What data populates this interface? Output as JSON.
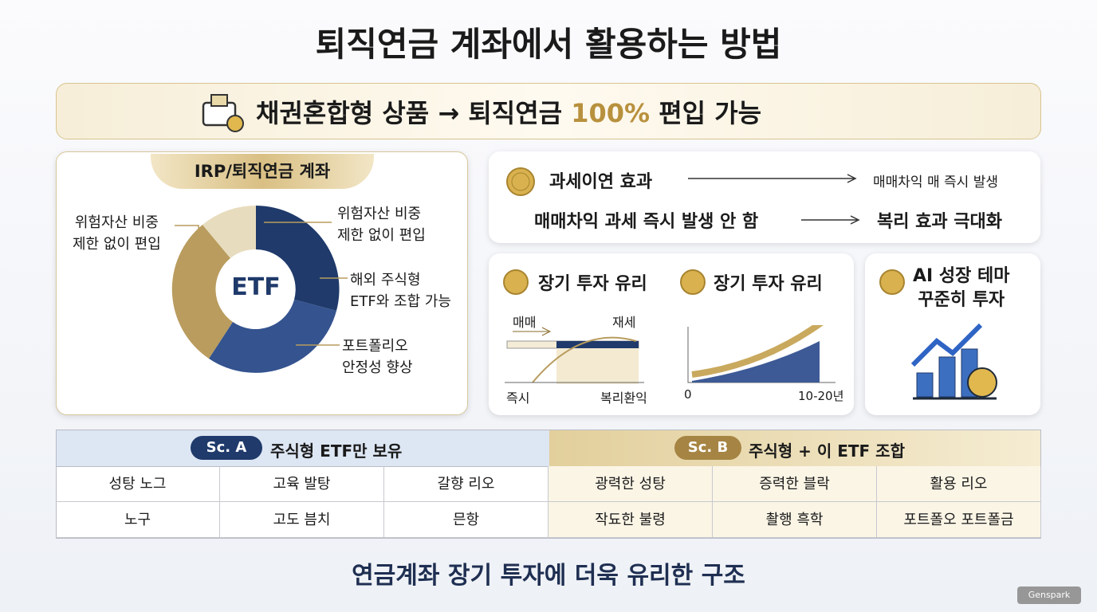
{
  "header": {
    "title": "퇴직연금 계좌에서 활용하는 방법",
    "banner": {
      "prefix": "채권혼합형 상품 → 퇴직연금",
      "highlight": "100%",
      "suffix": "편입 가능"
    }
  },
  "irp_panel": {
    "title": "IRP/퇴직연금 계좌",
    "center": "ETF",
    "labels": [
      [
        "위험자산 비중",
        "제한 없이 편입"
      ],
      [
        "위험자산 비중",
        "제한 없이 편입"
      ],
      [
        "해외 주식형",
        "ETF와 조합 가능"
      ],
      [
        "포트폴리오",
        "안정성 향상"
      ]
    ]
  },
  "tax_panel": {
    "row1": {
      "left": "과세이연 효과",
      "right": "매매차익 매 즉시 발생"
    },
    "row2": {
      "left": "매매차익 과세 즉시 발생 안 함",
      "right": "복리 효과 극대화"
    }
  },
  "long_term_1": {
    "title": "장기 투자 유리",
    "top_left": "매매",
    "top_right": "재세",
    "bottom_left": "즉시",
    "bottom_right": "복리환익"
  },
  "long_term_2": {
    "title": "장기 투자 유리",
    "x_start": "0",
    "x_end": "10-20년"
  },
  "ai_panel": {
    "title": [
      "AI 성장 테마",
      "꾸준히 투자"
    ]
  },
  "table": {
    "headers": [
      {
        "badge": "Sc. A",
        "text": "주식형 ETF만 보유"
      },
      {
        "badge": "Sc. B",
        "text": "주식형 + 이 ETF 조합"
      }
    ],
    "rows": [
      [
        "성탕 노그",
        "고육 발탕",
        "갈향 리오",
        "광력한 성탕",
        "증력한 블락",
        "활용 리오"
      ],
      [
        "노구",
        "고도 븜치",
        "믄항",
        "작됴한 불령",
        "촬행 흑학",
        "포트폴오 포트폴금"
      ]
    ]
  },
  "footer": "연금계좌 장기 투자에 더욱 유리한 구조",
  "watermark": "Genspark"
}
